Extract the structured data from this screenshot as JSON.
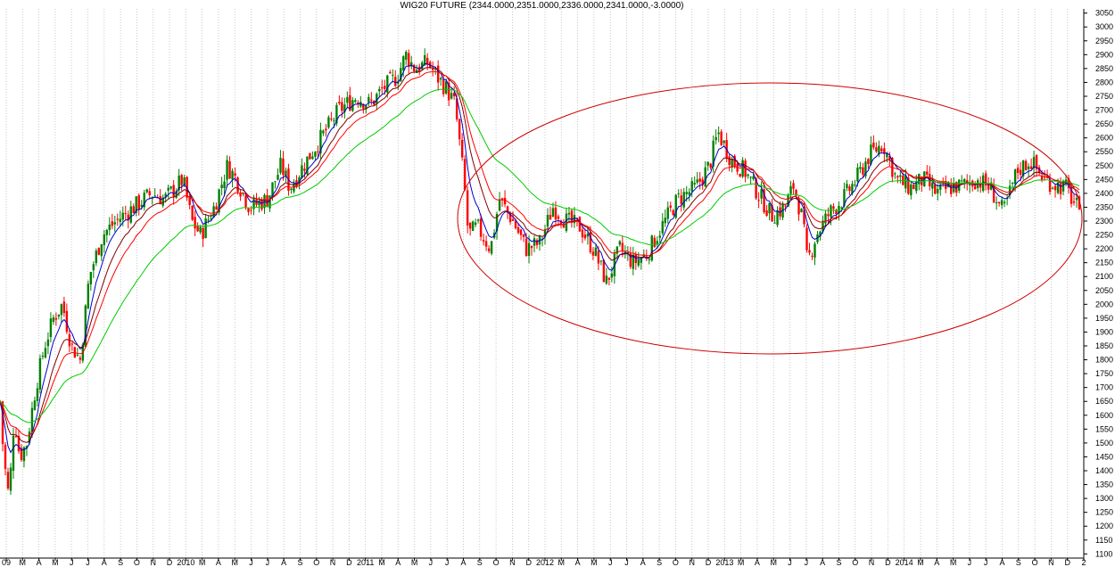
{
  "chart_data": {
    "type": "line",
    "title": "WIG20 FUTURE (2344.0000,2351.0000,2336.0000,2341.0000,-3.0000)",
    "ylim": [
      1085,
      3065
    ],
    "yticks": [
      1100,
      1150,
      1200,
      1250,
      1300,
      1350,
      1400,
      1450,
      1500,
      1550,
      1600,
      1650,
      1700,
      1750,
      1800,
      1850,
      1900,
      1950,
      2000,
      2050,
      2100,
      2150,
      2200,
      2250,
      2300,
      2350,
      2400,
      2450,
      2500,
      2550,
      2600,
      2650,
      2700,
      2750,
      2800,
      2850,
      2900,
      2950,
      3000,
      3050
    ],
    "xticks": [
      "09",
      "M",
      "A",
      "M",
      "J",
      "J",
      "A",
      "S",
      "O",
      "N",
      "D",
      "2010",
      "M",
      "A",
      "M",
      "J",
      "J",
      "A",
      "S",
      "O",
      "N",
      "D",
      "2011",
      "M",
      "A",
      "M",
      "J",
      "J",
      "A",
      "S",
      "O",
      "N",
      "D",
      "2012",
      "M",
      "A",
      "M",
      "J",
      "J",
      "A",
      "S",
      "O",
      "N",
      "D",
      "2013",
      "M",
      "A",
      "M",
      "J",
      "J",
      "A",
      "S",
      "O",
      "N",
      "D",
      "2014",
      "M",
      "A",
      "M",
      "J",
      "J",
      "A",
      "S",
      "O",
      "N",
      "D",
      "2"
    ],
    "grid": true,
    "legend": "none",
    "candle_up_color": "#008000",
    "candle_down_color": "#ff0000",
    "series": [
      {
        "color": "#0000cc"
      },
      {
        "color": "#800000"
      },
      {
        "color": "#ff0000"
      },
      {
        "color": "#00cc00"
      }
    ],
    "close_anchors": [
      [
        0,
        1650
      ],
      [
        4,
        1450
      ],
      [
        10,
        1300
      ],
      [
        16,
        1600
      ],
      [
        22,
        1450
      ],
      [
        30,
        1500
      ],
      [
        40,
        1700
      ],
      [
        50,
        1850
      ],
      [
        60,
        1950
      ],
      [
        70,
        2000
      ],
      [
        80,
        1850
      ],
      [
        90,
        1800
      ],
      [
        100,
        2100
      ],
      [
        115,
        2250
      ],
      [
        130,
        2300
      ],
      [
        150,
        2350
      ],
      [
        170,
        2400
      ],
      [
        185,
        2380
      ],
      [
        205,
        2450
      ],
      [
        215,
        2300
      ],
      [
        225,
        2250
      ],
      [
        240,
        2350
      ],
      [
        255,
        2500
      ],
      [
        265,
        2450
      ],
      [
        280,
        2350
      ],
      [
        300,
        2380
      ],
      [
        315,
        2500
      ],
      [
        325,
        2420
      ],
      [
        340,
        2500
      ],
      [
        360,
        2600
      ],
      [
        380,
        2700
      ],
      [
        400,
        2750
      ],
      [
        415,
        2720
      ],
      [
        430,
        2780
      ],
      [
        445,
        2820
      ],
      [
        455,
        2900
      ],
      [
        465,
        2850
      ],
      [
        480,
        2870
      ],
      [
        490,
        2820
      ],
      [
        500,
        2780
      ],
      [
        510,
        2720
      ],
      [
        520,
        2450
      ],
      [
        525,
        2250
      ],
      [
        535,
        2280
      ],
      [
        550,
        2200
      ],
      [
        560,
        2380
      ],
      [
        575,
        2300
      ],
      [
        590,
        2200
      ],
      [
        605,
        2220
      ],
      [
        620,
        2350
      ],
      [
        635,
        2300
      ],
      [
        650,
        2280
      ],
      [
        665,
        2200
      ],
      [
        680,
        2080
      ],
      [
        695,
        2200
      ],
      [
        710,
        2150
      ],
      [
        725,
        2180
      ],
      [
        740,
        2270
      ],
      [
        760,
        2380
      ],
      [
        780,
        2420
      ],
      [
        795,
        2500
      ],
      [
        805,
        2620
      ],
      [
        820,
        2520
      ],
      [
        835,
        2480
      ],
      [
        850,
        2400
      ],
      [
        865,
        2320
      ],
      [
        880,
        2350
      ],
      [
        890,
        2430
      ],
      [
        900,
        2300
      ],
      [
        905,
        2150
      ],
      [
        915,
        2250
      ],
      [
        930,
        2330
      ],
      [
        945,
        2380
      ],
      [
        960,
        2450
      ],
      [
        975,
        2540
      ],
      [
        990,
        2580
      ],
      [
        1005,
        2450
      ],
      [
        1020,
        2420
      ],
      [
        1035,
        2450
      ],
      [
        1050,
        2400
      ],
      [
        1065,
        2420
      ],
      [
        1080,
        2430
      ],
      [
        1095,
        2450
      ],
      [
        1110,
        2420
      ],
      [
        1125,
        2330
      ],
      [
        1140,
        2480
      ],
      [
        1155,
        2520
      ],
      [
        1170,
        2450
      ],
      [
        1185,
        2430
      ],
      [
        1195,
        2420
      ],
      [
        1205,
        2360
      ],
      [
        1210,
        2341
      ]
    ],
    "ellipse": {
      "color": "#cc0000"
    }
  }
}
